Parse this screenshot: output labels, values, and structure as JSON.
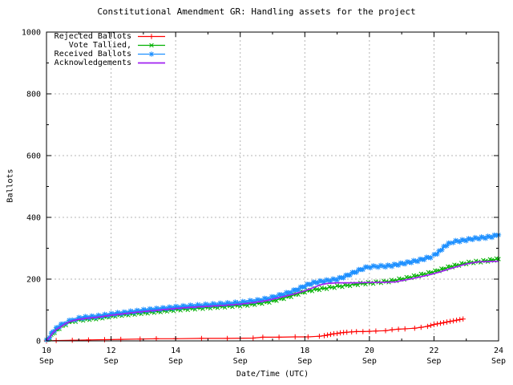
{
  "chart_data": {
    "type": "line",
    "title": "Constitutional Amendment GR: Handling assets for the project",
    "xlabel": "Date/Time (UTC)",
    "ylabel": "Ballots",
    "xlim": [
      10,
      24
    ],
    "ylim": [
      0,
      1000
    ],
    "x_unit": "day of September, shown as two-line tick labels",
    "grid": "dotted gray lines at major ticks, both axes",
    "legend_position": "top-left inside plot, no frame",
    "background": "#ffffff",
    "border_color": "#000000",
    "grid_color": "#b4b4b4",
    "x_major_ticks": [
      {
        "value": 10,
        "day": "10",
        "month": "Sep"
      },
      {
        "value": 12,
        "day": "12",
        "month": "Sep"
      },
      {
        "value": 14,
        "day": "14",
        "month": "Sep"
      },
      {
        "value": 16,
        "day": "16",
        "month": "Sep"
      },
      {
        "value": 18,
        "day": "18",
        "month": "Sep"
      },
      {
        "value": 20,
        "day": "20",
        "month": "Sep"
      },
      {
        "value": 22,
        "day": "22",
        "month": "Sep"
      },
      {
        "value": 24,
        "day": "24",
        "month": "Sep"
      }
    ],
    "x_minor_ticks": [
      11,
      13,
      15,
      17,
      19,
      21,
      23
    ],
    "y_major_ticks": [
      0,
      200,
      400,
      600,
      800,
      1000
    ],
    "y_minor_ticks": [
      100,
      300,
      500,
      700,
      900
    ],
    "series": [
      {
        "name": "Rejected Ballots",
        "color": "#ff0000",
        "marker": "plus",
        "marker_mode": "points",
        "line_width": 1.2,
        "points": [
          [
            10.0,
            0
          ],
          [
            10.3,
            1
          ],
          [
            10.8,
            2
          ],
          [
            11.3,
            3
          ],
          [
            11.8,
            4
          ],
          [
            12.3,
            5
          ],
          [
            12.9,
            6
          ],
          [
            13.4,
            7
          ],
          [
            14.0,
            7
          ],
          [
            14.8,
            8
          ],
          [
            15.6,
            8
          ],
          [
            16.4,
            9
          ],
          [
            16.7,
            12
          ],
          [
            17.2,
            12
          ],
          [
            17.7,
            13
          ],
          [
            18.1,
            13
          ],
          [
            18.45,
            15
          ],
          [
            18.6,
            17
          ],
          [
            18.7,
            19
          ],
          [
            18.8,
            21
          ],
          [
            18.9,
            23
          ],
          [
            19.0,
            24
          ],
          [
            19.1,
            26
          ],
          [
            19.2,
            27
          ],
          [
            19.3,
            28
          ],
          [
            19.45,
            29
          ],
          [
            19.6,
            30
          ],
          [
            19.8,
            30
          ],
          [
            20.0,
            31
          ],
          [
            20.2,
            32
          ],
          [
            20.5,
            33
          ],
          [
            20.7,
            36
          ],
          [
            20.9,
            38
          ],
          [
            21.1,
            39
          ],
          [
            21.4,
            41
          ],
          [
            21.6,
            44
          ],
          [
            21.8,
            47
          ],
          [
            21.9,
            50
          ],
          [
            22.0,
            53
          ],
          [
            22.1,
            55
          ],
          [
            22.2,
            57
          ],
          [
            22.3,
            59
          ],
          [
            22.4,
            61
          ],
          [
            22.5,
            63
          ],
          [
            22.6,
            65
          ],
          [
            22.7,
            67
          ],
          [
            22.8,
            69
          ],
          [
            22.9,
            71
          ]
        ]
      },
      {
        "name": "Vote Tallied,",
        "color": "#00b000",
        "marker": "cross",
        "marker_mode": "dense",
        "line_width": 1.2,
        "points": [
          [
            10.0,
            0
          ],
          [
            10.05,
            4
          ],
          [
            10.1,
            10
          ],
          [
            10.15,
            17
          ],
          [
            10.2,
            24
          ],
          [
            10.3,
            34
          ],
          [
            10.4,
            42
          ],
          [
            10.5,
            49
          ],
          [
            10.6,
            54
          ],
          [
            10.7,
            58
          ],
          [
            10.8,
            62
          ],
          [
            10.9,
            65
          ],
          [
            11.0,
            67
          ],
          [
            11.2,
            70
          ],
          [
            11.4,
            72
          ],
          [
            11.6,
            74
          ],
          [
            11.8,
            77
          ],
          [
            12.0,
            80
          ],
          [
            12.2,
            83
          ],
          [
            12.4,
            85
          ],
          [
            12.6,
            87
          ],
          [
            12.8,
            89
          ],
          [
            13.0,
            91
          ],
          [
            13.2,
            93
          ],
          [
            13.4,
            95
          ],
          [
            13.6,
            97
          ],
          [
            13.8,
            99
          ],
          [
            14.0,
            101
          ],
          [
            14.3,
            103
          ],
          [
            14.6,
            105
          ],
          [
            15.0,
            108
          ],
          [
            15.3,
            110
          ],
          [
            15.6,
            112
          ],
          [
            16.0,
            115
          ],
          [
            16.3,
            118
          ],
          [
            16.6,
            122
          ],
          [
            16.9,
            127
          ],
          [
            17.2,
            135
          ],
          [
            17.5,
            143
          ],
          [
            17.8,
            153
          ],
          [
            18.0,
            160
          ],
          [
            18.3,
            166
          ],
          [
            18.6,
            170
          ],
          [
            19.0,
            176
          ],
          [
            19.4,
            181
          ],
          [
            19.8,
            186
          ],
          [
            20.2,
            189
          ],
          [
            20.6,
            193
          ],
          [
            21.0,
            200
          ],
          [
            21.3,
            207
          ],
          [
            21.6,
            214
          ],
          [
            21.9,
            221
          ],
          [
            22.1,
            227
          ],
          [
            22.3,
            233
          ],
          [
            22.5,
            240
          ],
          [
            22.7,
            245
          ],
          [
            23.0,
            252
          ],
          [
            23.3,
            256
          ],
          [
            23.6,
            259
          ],
          [
            23.8,
            262
          ],
          [
            24.0,
            265
          ]
        ]
      },
      {
        "name": "Received Ballots",
        "color": "#1e90ff",
        "marker": "star",
        "marker_mode": "dense",
        "line_width": 1.2,
        "points": [
          [
            10.0,
            0
          ],
          [
            10.05,
            6
          ],
          [
            10.1,
            14
          ],
          [
            10.15,
            22
          ],
          [
            10.2,
            30
          ],
          [
            10.3,
            40
          ],
          [
            10.4,
            48
          ],
          [
            10.5,
            55
          ],
          [
            10.6,
            60
          ],
          [
            10.7,
            64
          ],
          [
            10.8,
            68
          ],
          [
            10.9,
            71
          ],
          [
            11.0,
            73
          ],
          [
            11.2,
            76
          ],
          [
            11.4,
            78
          ],
          [
            11.6,
            80
          ],
          [
            11.8,
            83
          ],
          [
            12.0,
            86
          ],
          [
            12.2,
            89
          ],
          [
            12.4,
            91
          ],
          [
            12.6,
            94
          ],
          [
            12.8,
            96
          ],
          [
            13.0,
            99
          ],
          [
            13.2,
            101
          ],
          [
            13.4,
            103
          ],
          [
            13.6,
            105
          ],
          [
            13.8,
            107
          ],
          [
            14.0,
            109
          ],
          [
            14.3,
            112
          ],
          [
            14.6,
            114
          ],
          [
            15.0,
            117
          ],
          [
            15.3,
            119
          ],
          [
            15.6,
            121
          ],
          [
            16.0,
            124
          ],
          [
            16.3,
            128
          ],
          [
            16.6,
            132
          ],
          [
            16.9,
            138
          ],
          [
            17.2,
            147
          ],
          [
            17.5,
            156
          ],
          [
            17.8,
            168
          ],
          [
            18.0,
            178
          ],
          [
            18.2,
            186
          ],
          [
            18.4,
            191
          ],
          [
            18.6,
            194
          ],
          [
            18.8,
            197
          ],
          [
            19.0,
            200
          ],
          [
            19.2,
            207
          ],
          [
            19.4,
            216
          ],
          [
            19.6,
            225
          ],
          [
            19.8,
            234
          ],
          [
            19.95,
            239
          ],
          [
            20.2,
            241
          ],
          [
            20.5,
            242
          ],
          [
            20.7,
            244
          ],
          [
            20.9,
            248
          ],
          [
            21.1,
            252
          ],
          [
            21.3,
            256
          ],
          [
            21.5,
            260
          ],
          [
            21.7,
            266
          ],
          [
            21.9,
            272
          ],
          [
            22.0,
            277
          ],
          [
            22.1,
            284
          ],
          [
            22.2,
            293
          ],
          [
            22.3,
            303
          ],
          [
            22.4,
            311
          ],
          [
            22.5,
            317
          ],
          [
            22.6,
            321
          ],
          [
            22.8,
            324
          ],
          [
            23.0,
            327
          ],
          [
            23.2,
            331
          ],
          [
            23.4,
            333
          ],
          [
            23.6,
            335
          ],
          [
            23.8,
            338
          ],
          [
            24.0,
            343
          ]
        ]
      },
      {
        "name": "Acknowledgements",
        "color": "#a020f0",
        "marker": "none",
        "marker_mode": "none",
        "line_width": 1.7,
        "points": [
          [
            10.0,
            0
          ],
          [
            10.1,
            12
          ],
          [
            10.2,
            27
          ],
          [
            10.3,
            37
          ],
          [
            10.45,
            46
          ],
          [
            10.6,
            57
          ],
          [
            10.8,
            65
          ],
          [
            11.0,
            70
          ],
          [
            11.3,
            74
          ],
          [
            11.6,
            77
          ],
          [
            12.0,
            83
          ],
          [
            12.4,
            88
          ],
          [
            12.8,
            93
          ],
          [
            13.2,
            97
          ],
          [
            13.6,
            101
          ],
          [
            14.0,
            105
          ],
          [
            14.5,
            109
          ],
          [
            15.0,
            112
          ],
          [
            15.5,
            115
          ],
          [
            16.0,
            119
          ],
          [
            16.4,
            124
          ],
          [
            16.8,
            130
          ],
          [
            17.2,
            140
          ],
          [
            17.6,
            150
          ],
          [
            18.0,
            162
          ],
          [
            18.3,
            174
          ],
          [
            18.5,
            182
          ],
          [
            18.7,
            186
          ],
          [
            19.0,
            188
          ],
          [
            19.5,
            188
          ],
          [
            20.0,
            189
          ],
          [
            20.5,
            190
          ],
          [
            20.8,
            191
          ],
          [
            21.0,
            195
          ],
          [
            21.3,
            201
          ],
          [
            21.6,
            208
          ],
          [
            21.9,
            215
          ],
          [
            22.2,
            224
          ],
          [
            22.5,
            234
          ],
          [
            22.8,
            243
          ],
          [
            23.0,
            249
          ],
          [
            23.2,
            253
          ],
          [
            23.4,
            256
          ],
          [
            23.7,
            257
          ],
          [
            24.0,
            258
          ]
        ]
      }
    ]
  }
}
